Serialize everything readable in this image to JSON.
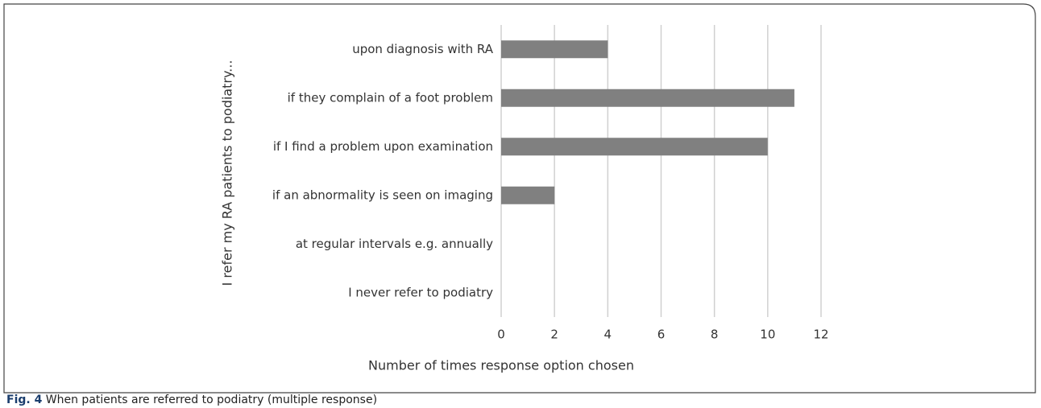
{
  "chart_data": {
    "type": "hbar",
    "ylabel": "I refer my RA patients to podiatry...",
    "xlabel": "Number  of times response option chosen",
    "categories": [
      "upon diagnosis with RA",
      "if they complain of a foot problem",
      "if I find a problem upon examination",
      "if an abnormality is seen on imaging",
      "at regular intervals e.g. annually",
      "I never refer to podiatry"
    ],
    "values": [
      4,
      11,
      10,
      2,
      0,
      0
    ],
    "color": "#808080",
    "xlim": [
      0,
      12
    ],
    "xticks": [
      0,
      2,
      4,
      6,
      8,
      10,
      12
    ],
    "grid": true
  },
  "caption": {
    "label": "Fig. 4",
    "text": "When patients are referred to podiatry (multiple response)"
  }
}
